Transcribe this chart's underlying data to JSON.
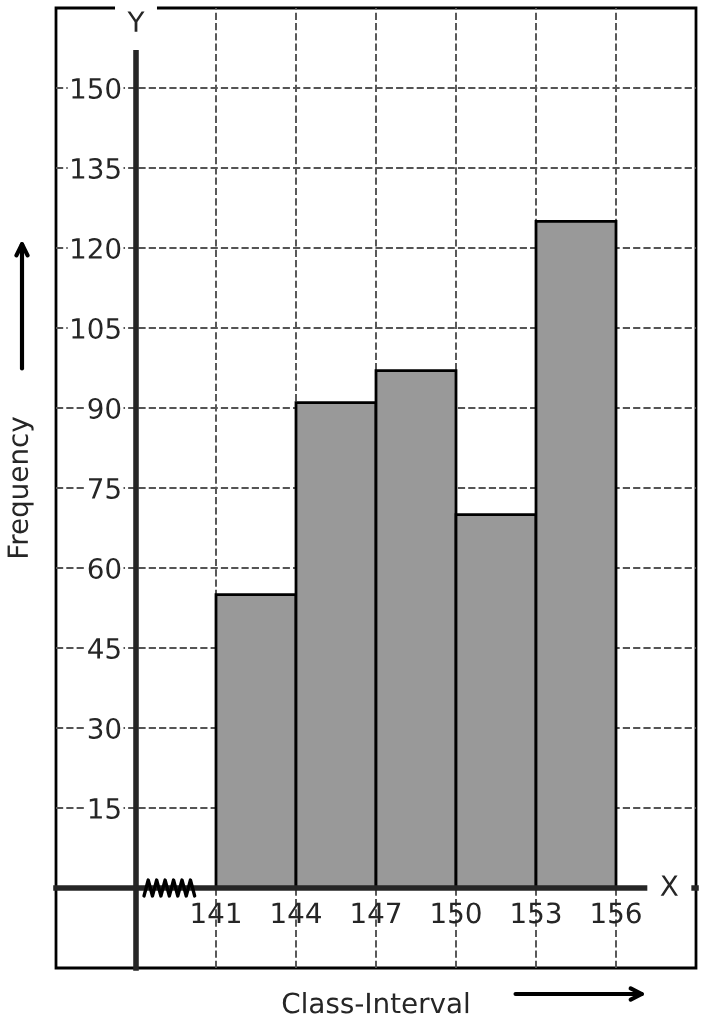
{
  "chart_data": {
    "type": "histogram",
    "xlabel": "Class-Interval",
    "ylabel": "Frequency",
    "bins": [
      141,
      144,
      147,
      150,
      153,
      156
    ],
    "values": [
      55,
      91,
      97,
      70,
      125
    ],
    "color": "#999999",
    "xlim": [
      135,
      159
    ],
    "ylim": [
      -15,
      165
    ],
    "xticks": [
      141,
      144,
      147,
      150,
      153,
      156
    ],
    "yticks": [
      15,
      30,
      45,
      60,
      75,
      90,
      105,
      120,
      135,
      150
    ],
    "annotations": [
      {
        "text": "X",
        "x": 158,
        "y": 0
      },
      {
        "text": "Y",
        "x": 138,
        "y": 162
      }
    ],
    "grid": true
  }
}
